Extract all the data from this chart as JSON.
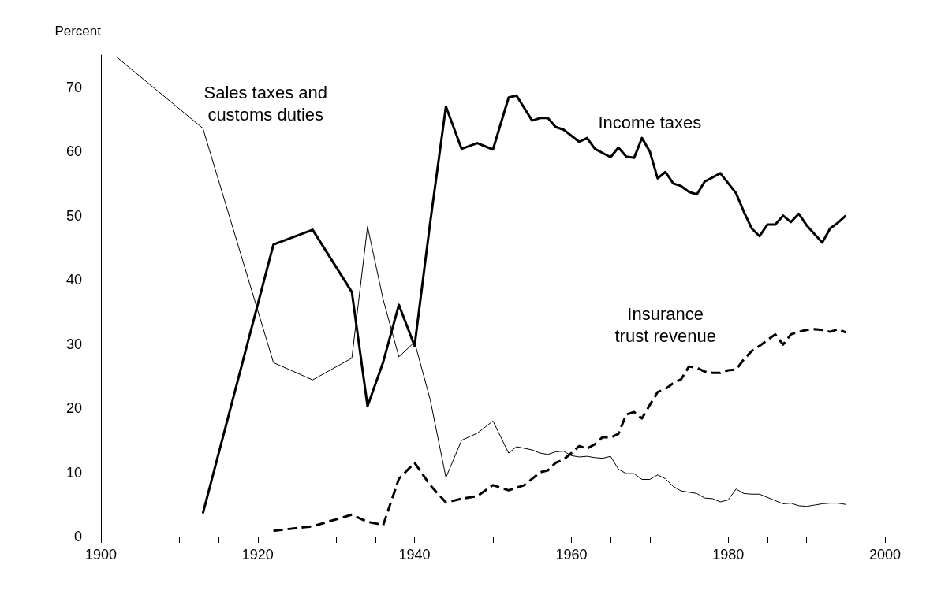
{
  "chart_data": {
    "type": "line",
    "ylabel": "Percent",
    "xlim": [
      1900,
      2000
    ],
    "xticks": [
      1900,
      {
        "value": 1905,
        "label": null
      },
      {
        "value": 1910,
        "label": null
      },
      {
        "value": 1915,
        "label": null
      },
      1920,
      {
        "value": 1925,
        "label": null
      },
      {
        "value": 1930,
        "label": null
      },
      {
        "value": 1935,
        "label": null
      },
      1940,
      {
        "value": 1945,
        "label": null
      },
      {
        "value": 1950,
        "label": null
      },
      {
        "value": 1955,
        "label": null
      },
      1960,
      {
        "value": 1965,
        "label": null
      },
      {
        "value": 1970,
        "label": null
      },
      {
        "value": 1975,
        "label": null
      },
      1980,
      {
        "value": 1985,
        "label": null
      },
      {
        "value": 1990,
        "label": null
      },
      {
        "value": 1995,
        "label": null
      },
      2000
    ],
    "ylim": [
      0,
      75
    ],
    "yticks": [
      0,
      10,
      20,
      30,
      40,
      50,
      60,
      70
    ],
    "grid": false,
    "legend": false,
    "marker": "none",
    "series": [
      {
        "name": "Sales taxes and\ncustoms duties",
        "color": "#000000",
        "line_style": "solid",
        "x": [
          1902,
          1913,
          1922,
          1927,
          1932,
          1934,
          1936,
          1938,
          1940,
          1942,
          1944,
          1946,
          1948,
          1950,
          1952,
          1953,
          1955,
          1956,
          1957,
          1958,
          1959,
          1960,
          1961,
          1962,
          1963,
          1964,
          1965,
          1966,
          1967,
          1968,
          1969,
          1970,
          1971,
          1972,
          1973,
          1974,
          1975,
          1976,
          1977,
          1978,
          1979,
          1980,
          1981,
          1982,
          1983,
          1984,
          1985,
          1986,
          1987,
          1988,
          1989,
          1990,
          1991,
          1992,
          1993,
          1994,
          1995
        ],
        "values": [
          74.7,
          63.6,
          27.1,
          24.4,
          27.8,
          48.3,
          36.9,
          28.0,
          30.3,
          21.3,
          9.2,
          15.0,
          16.1,
          18.0,
          13.0,
          14.0,
          13.5,
          13.0,
          12.8,
          13.2,
          13.3,
          12.6,
          12.4,
          12.5,
          12.3,
          12.2,
          12.5,
          10.5,
          9.8,
          9.8,
          8.9,
          8.9,
          9.6,
          9.0,
          7.8,
          7.1,
          6.9,
          6.7,
          6.0,
          5.9,
          5.4,
          5.7,
          7.4,
          6.7,
          6.6,
          6.6,
          6.1,
          5.6,
          5.1,
          5.2,
          4.8,
          4.7,
          4.9,
          5.1,
          5.2,
          5.2,
          5.0
        ]
      },
      {
        "name": "Income taxes",
        "color": "#000000",
        "line_style": "solid",
        "x": [
          1913,
          1922,
          1927,
          1932,
          1934,
          1936,
          1938,
          1940,
          1942,
          1944,
          1946,
          1948,
          1950,
          1952,
          1953,
          1955,
          1956,
          1957,
          1958,
          1959,
          1961,
          1962,
          1963,
          1965,
          1966,
          1967,
          1968,
          1969,
          1970,
          1971,
          1972,
          1973,
          1974,
          1975,
          1976,
          1977,
          1979,
          1981,
          1982,
          1983,
          1984,
          1985,
          1986,
          1987,
          1988,
          1989,
          1990,
          1992,
          1993,
          1994,
          1995
        ],
        "values": [
          3.6,
          45.5,
          47.8,
          38.1,
          20.3,
          27.2,
          36.1,
          29.7,
          49.0,
          67.0,
          60.4,
          61.3,
          60.3,
          68.4,
          68.7,
          64.8,
          65.2,
          65.2,
          63.8,
          63.4,
          61.5,
          62.1,
          60.4,
          59.1,
          60.6,
          59.2,
          59.0,
          62.1,
          60.0,
          55.8,
          56.8,
          55.0,
          54.6,
          53.7,
          53.3,
          55.3,
          56.6,
          53.5,
          50.6,
          48.0,
          46.8,
          48.6,
          48.6,
          50.0,
          49.0,
          50.3,
          48.5,
          45.8,
          48.0,
          48.9,
          50.0
        ]
      },
      {
        "name": "Insurance\ntrust revenue",
        "color": "#000000",
        "line_style": "dashed",
        "x": [
          1922,
          1927,
          1932,
          1934,
          1936,
          1938,
          1940,
          1942,
          1944,
          1946,
          1948,
          1950,
          1952,
          1954,
          1956,
          1957,
          1958,
          1959,
          1960,
          1961,
          1962,
          1963,
          1964,
          1965,
          1966,
          1967,
          1968,
          1969,
          1970,
          1971,
          1972,
          1973,
          1974,
          1975,
          1976,
          1977,
          1978,
          1979,
          1980,
          1981,
          1982,
          1983,
          1984,
          1985,
          1986,
          1987,
          1988,
          1989,
          1990,
          1991,
          1992,
          1993,
          1994,
          1995
        ],
        "values": [
          0.9,
          1.6,
          3.4,
          2.3,
          1.8,
          9.0,
          11.5,
          8.0,
          5.3,
          5.9,
          6.3,
          8.0,
          7.2,
          8.0,
          10.0,
          10.3,
          11.5,
          12.0,
          13.0,
          14.1,
          13.7,
          14.4,
          15.5,
          15.4,
          16.0,
          19.0,
          19.4,
          18.4,
          20.5,
          22.5,
          23.0,
          23.9,
          24.5,
          26.5,
          26.3,
          25.7,
          25.5,
          25.5,
          25.9,
          26.0,
          27.6,
          28.9,
          29.7,
          30.6,
          31.5,
          29.9,
          31.5,
          31.9,
          32.2,
          32.3,
          32.2,
          31.9,
          32.3,
          31.8
        ]
      }
    ]
  }
}
